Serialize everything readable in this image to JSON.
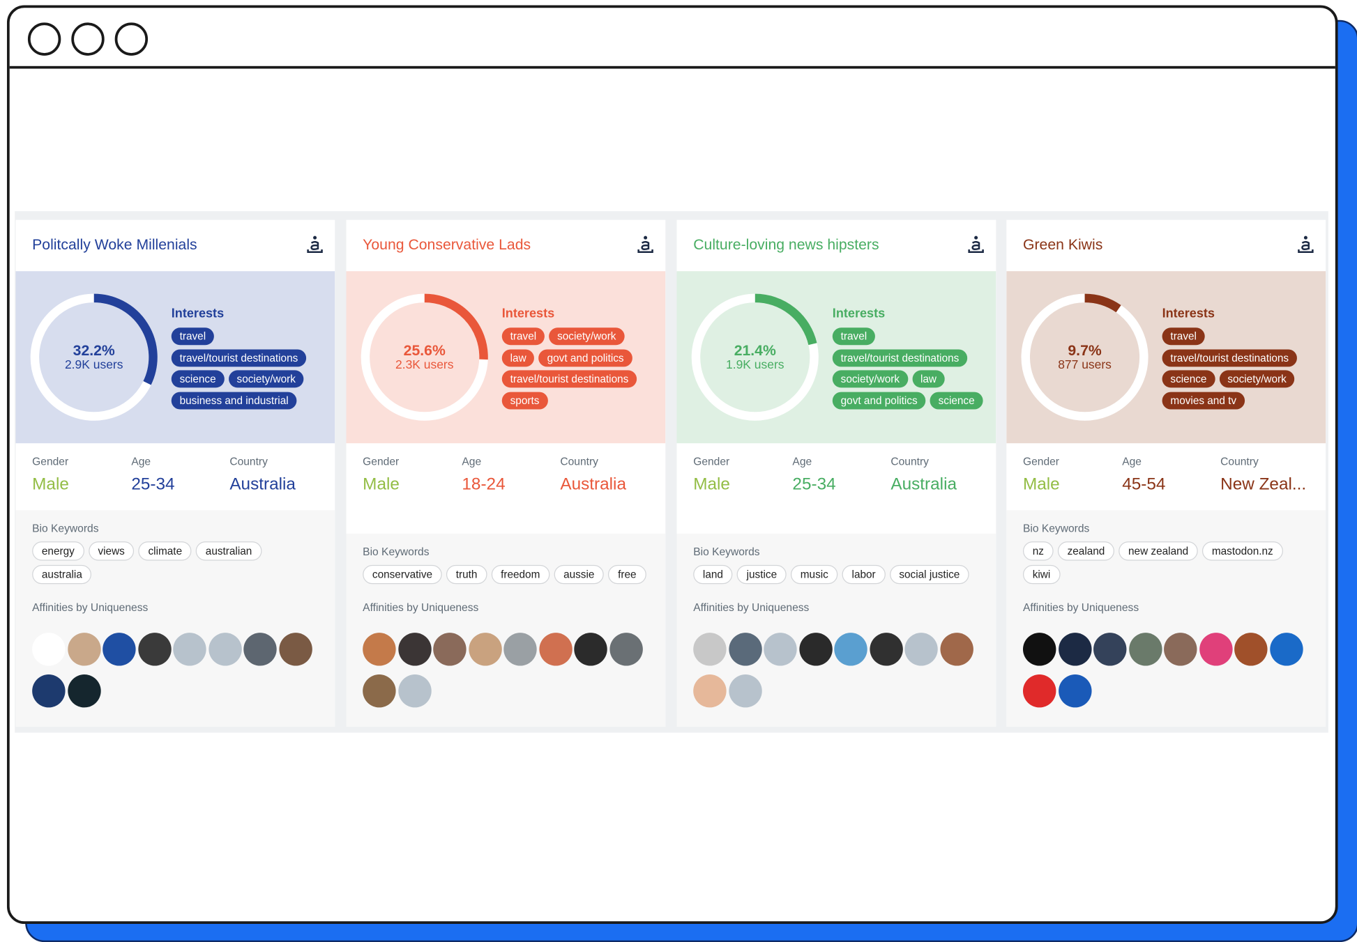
{
  "cards": [
    {
      "title": "Politcally Woke Millenials",
      "color": "#22409a",
      "background": "#d7ddee",
      "percent": 32.2,
      "percent_label": "32.2%",
      "users": "2.9K users",
      "interests_label": "Interests",
      "interests": [
        "travel",
        "travel/tourist destinations",
        "science",
        "society/work",
        "business and industrial"
      ],
      "gender_label": "Gender",
      "gender": "Male",
      "age_label": "Age",
      "age": "25-34",
      "country_label": "Country",
      "country": "Australia",
      "bio_label": "Bio Keywords",
      "bio_keywords": [
        "energy",
        "views",
        "climate",
        "australian",
        "australia"
      ],
      "affinities_label": "Affinities by Uniqueness"
    },
    {
      "title": "Young Conservative Lads",
      "color": "#e9573a",
      "background": "#fbe0da",
      "percent": 25.6,
      "percent_label": "25.6%",
      "users": "2.3K users",
      "interests_label": "Interests",
      "interests": [
        "travel",
        "society/work",
        "law",
        "govt and politics",
        "travel/tourist destinations",
        "sports"
      ],
      "gender_label": "Gender",
      "gender": "Male",
      "age_label": "Age",
      "age": "18-24",
      "country_label": "Country",
      "country": "Australia",
      "bio_label": "Bio Keywords",
      "bio_keywords": [
        "conservative",
        "truth",
        "freedom",
        "aussie",
        "free"
      ],
      "affinities_label": "Affinities by Uniqueness"
    },
    {
      "title": "Culture-loving news hipsters",
      "color": "#48ad62",
      "background": "#dff0e3",
      "percent": 21.4,
      "percent_label": "21.4%",
      "users": "1.9K users",
      "interests_label": "Interests",
      "interests": [
        "travel",
        "travel/tourist destinations",
        "society/work",
        "law",
        "govt and politics",
        "science"
      ],
      "gender_label": "Gender",
      "gender": "Male",
      "age_label": "Age",
      "age": "25-34",
      "country_label": "Country",
      "country": "Australia",
      "bio_label": "Bio Keywords",
      "bio_keywords": [
        "land",
        "justice",
        "music",
        "labor",
        "social justice"
      ],
      "affinities_label": "Affinities by Uniqueness"
    },
    {
      "title": "Green Kiwis",
      "color": "#8a3417",
      "background": "#e9d9d1",
      "percent": 9.7,
      "percent_label": "9.7%",
      "users": "877 users",
      "interests_label": "Interests",
      "interests": [
        "travel",
        "travel/tourist destinations",
        "science",
        "society/work",
        "movies and tv"
      ],
      "gender_label": "Gender",
      "gender": "Male",
      "age_label": "Age",
      "age": "45-54",
      "country_label": "Country",
      "country": "New Zeal...",
      "bio_label": "Bio Keywords",
      "bio_keywords": [
        "nz",
        "zealand",
        "new zealand",
        "mastodon.nz",
        "kiwi"
      ],
      "affinities_label": "Affinities by Uniqueness"
    }
  ]
}
